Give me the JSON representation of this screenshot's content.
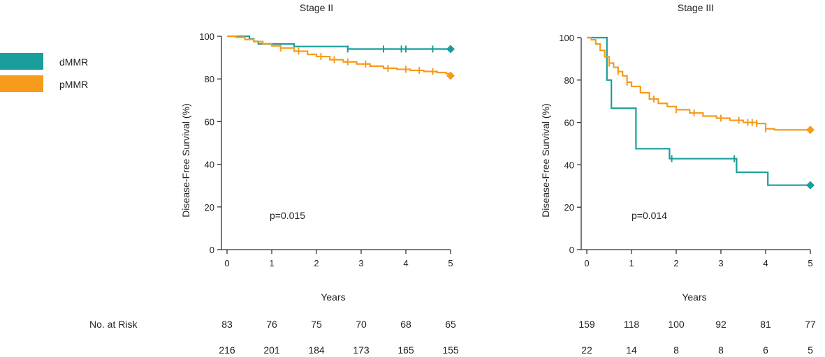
{
  "colors": {
    "dMMR": "#1a9e9b",
    "pMMR": "#f79b1d"
  },
  "legend": [
    {
      "name": "dMMR",
      "color": "#1a9e9b"
    },
    {
      "name": "pMMR",
      "color": "#f79b1d"
    }
  ],
  "risk_table": {
    "label": "No. at Risk"
  },
  "chart_data": [
    {
      "type": "line",
      "title": "Stage II",
      "xlabel": "Years",
      "ylabel": "Disease-Free Survival (%)",
      "xlim": [
        0,
        5
      ],
      "ylim": [
        0,
        100
      ],
      "xticks": [
        0,
        1,
        2,
        3,
        4,
        5
      ],
      "yticks": [
        0,
        20,
        40,
        60,
        80,
        100
      ],
      "annotation": "p=0.015",
      "series": [
        {
          "name": "dMMR",
          "color": "#1a9e9b",
          "x": [
            0,
            0.35,
            0.5,
            0.6,
            0.7,
            1.0,
            1.5,
            2.0,
            2.7,
            3.0,
            3.5,
            3.9,
            4.0,
            4.6,
            5.0
          ],
          "y": [
            100,
            100,
            98.8,
            97.6,
            96.4,
            96.4,
            95.2,
            95.2,
            94.0,
            94.0,
            94.0,
            94.0,
            94.0,
            94.0,
            94.0
          ],
          "censored": [
            2.7,
            3.5,
            3.9,
            4.0,
            4.6,
            5.0
          ]
        },
        {
          "name": "pMMR",
          "color": "#f79b1d",
          "x": [
            0,
            0.2,
            0.4,
            0.6,
            0.8,
            1.0,
            1.2,
            1.5,
            1.8,
            2.0,
            2.3,
            2.6,
            2.9,
            3.2,
            3.5,
            3.8,
            4.1,
            4.4,
            4.7,
            4.9,
            5.0
          ],
          "y": [
            100,
            99.5,
            98.5,
            97.5,
            96.5,
            95.5,
            94.5,
            93.0,
            91.5,
            90.5,
            89.0,
            88.0,
            87.0,
            86.0,
            85.0,
            84.5,
            84.0,
            83.5,
            83.0,
            82.5,
            81.5
          ],
          "censored": [
            1.2,
            1.6,
            2.1,
            2.4,
            2.7,
            3.1,
            3.6,
            4.0,
            4.3,
            4.6,
            5.0
          ]
        }
      ],
      "risk": [
        {
          "name": "dMMR",
          "values": [
            83,
            76,
            75,
            70,
            68,
            65
          ]
        },
        {
          "name": "pMMR",
          "values": [
            216,
            201,
            184,
            173,
            165,
            155
          ]
        }
      ]
    },
    {
      "type": "line",
      "title": "Stage III",
      "xlabel": "Years",
      "ylabel": "Disease-Free Survival (%)",
      "xlim": [
        0,
        5
      ],
      "ylim": [
        0,
        100
      ],
      "xticks": [
        0,
        1,
        2,
        3,
        4,
        5
      ],
      "yticks": [
        0,
        20,
        40,
        60,
        80,
        100
      ],
      "annotation": "p=0.014",
      "series": [
        {
          "name": "dMMR",
          "color": "#1a9e9b",
          "x": [
            0,
            0.35,
            0.45,
            0.55,
            1.05,
            1.1,
            1.8,
            1.85,
            3.3,
            3.35,
            4.0,
            4.05,
            5.0
          ],
          "y": [
            100,
            100,
            80,
            66.7,
            66.7,
            47.6,
            47.6,
            42.9,
            42.9,
            36.5,
            36.5,
            30.4,
            30.4
          ],
          "censored": [
            1.9,
            3.3,
            5.0
          ]
        },
        {
          "name": "pMMR",
          "color": "#f79b1d",
          "x": [
            0,
            0.1,
            0.2,
            0.3,
            0.4,
            0.5,
            0.6,
            0.7,
            0.8,
            0.9,
            1.0,
            1.2,
            1.4,
            1.6,
            1.8,
            2.0,
            2.3,
            2.6,
            2.9,
            3.2,
            3.5,
            3.8,
            4.0,
            4.2,
            4.5,
            4.8,
            5.0
          ],
          "y": [
            100,
            99,
            97,
            94,
            91,
            88,
            86,
            84,
            82,
            79,
            77,
            74,
            71,
            69,
            67.5,
            66,
            64.5,
            63,
            62,
            61,
            60,
            59.5,
            57,
            56.5,
            56.5,
            56.5,
            56.5
          ],
          "censored": [
            0.5,
            0.7,
            0.9,
            1.5,
            2.0,
            2.4,
            3.0,
            3.4,
            3.6,
            3.7,
            3.8,
            4.0,
            5.0
          ]
        }
      ],
      "risk": [
        {
          "name": "pMMR",
          "values": [
            159,
            118,
            100,
            92,
            81,
            77
          ]
        },
        {
          "name": "dMMR",
          "values": [
            22,
            14,
            8,
            8,
            6,
            5
          ]
        }
      ]
    }
  ]
}
